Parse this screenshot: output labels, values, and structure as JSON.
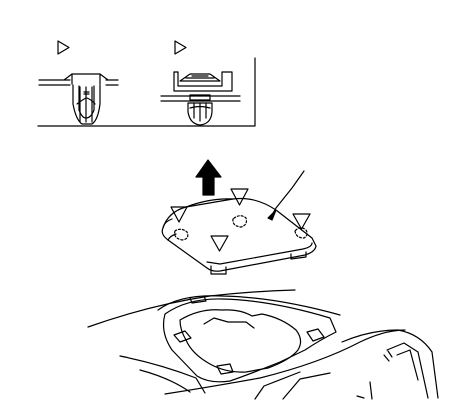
{
  "diagram": {
    "description_free": true,
    "clip_types": [
      {
        "marker": "triangle-open",
        "kind": "push-pin-clip"
      },
      {
        "marker": "triangle-open",
        "kind": "two-piece-clip"
      }
    ],
    "arrow_direction": "up",
    "panel_markers_count": 4
  }
}
